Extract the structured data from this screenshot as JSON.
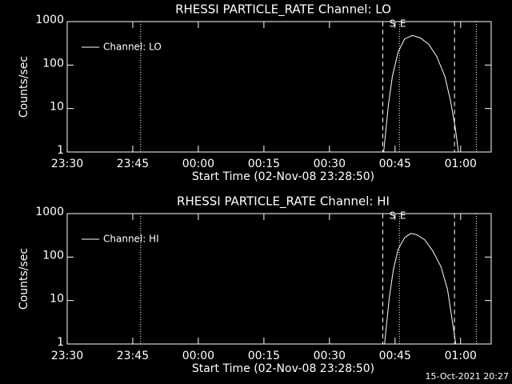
{
  "chart_data": [
    {
      "type": "line",
      "title": "RHESSI PARTICLE_RATE Channel: LO",
      "xlabel": "Start Time (02-Nov-08 23:28:50)",
      "ylabel": "Counts/sec",
      "log_y": true,
      "legend": "top-left",
      "xlim": [
        0,
        97
      ],
      "ylim": [
        1,
        1000
      ],
      "xticks": [
        {
          "value": 0,
          "label": "23:30"
        },
        {
          "value": 15,
          "label": "23:45"
        },
        {
          "value": 30,
          "label": "00:00"
        },
        {
          "value": 45,
          "label": "00:15"
        },
        {
          "value": 60,
          "label": "00:30"
        },
        {
          "value": 75,
          "label": "00:45"
        },
        {
          "value": 90,
          "label": "01:00"
        }
      ],
      "yticks": [
        1,
        10,
        100,
        1000
      ],
      "series": [
        {
          "name": "Channel: LO",
          "color": "#ffffff",
          "x": [
            72.4,
            73.5,
            74.4,
            75.7,
            77.2,
            79.0,
            80.8,
            82.7,
            84.5,
            86.4,
            87.7,
            88.8,
            89.5
          ],
          "values": [
            1,
            12.6,
            55,
            200,
            400,
            480,
            420,
            300,
            160,
            55,
            15,
            3.5,
            1
          ]
        }
      ],
      "vlines": [
        {
          "x": 16.8,
          "style": "dotted"
        },
        {
          "x": 72.2,
          "style": "dashed"
        },
        {
          "x": 76.0,
          "style": "dotted"
        },
        {
          "x": 88.6,
          "style": "dashed"
        },
        {
          "x": 93.6,
          "style": "dotted"
        }
      ],
      "annotations": [
        {
          "text": "S",
          "x": 74.4
        },
        {
          "text": "E",
          "x": 76.8
        }
      ]
    },
    {
      "type": "line",
      "title": "RHESSI PARTICLE_RATE Channel: HI",
      "xlabel": "Start Time (02-Nov-08 23:28:50)",
      "ylabel": "Counts/sec",
      "log_y": true,
      "legend": "top-left",
      "xlim": [
        0,
        97
      ],
      "ylim": [
        1,
        1000
      ],
      "xticks": [
        {
          "value": 0,
          "label": "23:30"
        },
        {
          "value": 15,
          "label": "23:45"
        },
        {
          "value": 30,
          "label": "00:00"
        },
        {
          "value": 45,
          "label": "00:15"
        },
        {
          "value": 60,
          "label": "00:30"
        },
        {
          "value": 75,
          "label": "00:45"
        },
        {
          "value": 90,
          "label": "01:00"
        }
      ],
      "yticks": [
        1,
        10,
        100,
        1000
      ],
      "series": [
        {
          "name": "Channel: HI",
          "color": "#ffffff",
          "x": [
            72.6,
            73.7,
            74.6,
            75.7,
            77.2,
            78.6,
            79.9,
            81.8,
            83.6,
            85.5,
            87.0,
            88.0,
            88.9
          ],
          "values": [
            1,
            12,
            50,
            150,
            280,
            350,
            330,
            250,
            140,
            60,
            18,
            4,
            1
          ]
        }
      ],
      "vlines": [
        {
          "x": 16.8,
          "style": "dotted"
        },
        {
          "x": 72.2,
          "style": "dashed"
        },
        {
          "x": 76.0,
          "style": "dotted"
        },
        {
          "x": 88.6,
          "style": "dashed"
        },
        {
          "x": 93.6,
          "style": "dotted"
        }
      ],
      "annotations": [
        {
          "text": "S",
          "x": 74.4
        },
        {
          "text": "E",
          "x": 76.8
        }
      ]
    }
  ],
  "footer": "15-Oct-2021 20:27"
}
